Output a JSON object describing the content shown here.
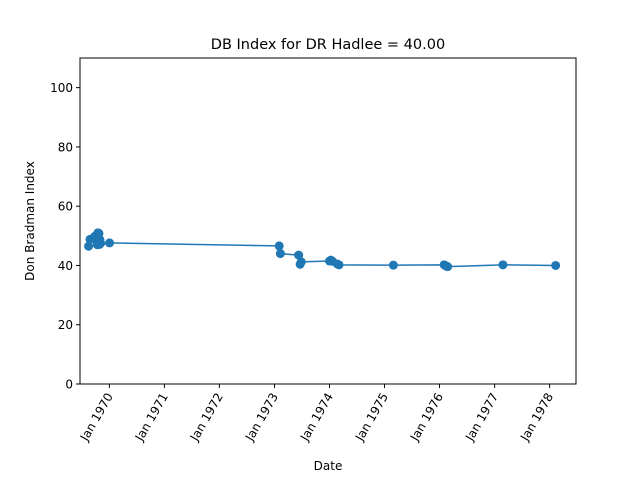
{
  "chart_data": {
    "type": "line",
    "title": "DB Index for DR Hadlee = 40.00",
    "xlabel": "Date",
    "ylabel": "Don Bradman Index",
    "x_scale": "date",
    "xlim": [
      "1969-06-20",
      "1978-06-25"
    ],
    "ylim": [
      0,
      110
    ],
    "x_ticks": [
      {
        "date": "1970-01-01",
        "label": "Jan 1970"
      },
      {
        "date": "1971-01-01",
        "label": "Jan 1971"
      },
      {
        "date": "1972-01-01",
        "label": "Jan 1972"
      },
      {
        "date": "1973-01-01",
        "label": "Jan 1973"
      },
      {
        "date": "1974-01-01",
        "label": "Jan 1974"
      },
      {
        "date": "1975-01-01",
        "label": "Jan 1975"
      },
      {
        "date": "1976-01-01",
        "label": "Jan 1976"
      },
      {
        "date": "1977-01-01",
        "label": "Jan 1977"
      },
      {
        "date": "1978-01-01",
        "label": "Jan 1978"
      }
    ],
    "y_ticks": [
      0,
      20,
      40,
      60,
      80,
      100
    ],
    "grid": false,
    "legend": "none",
    "color": "#1f77b4",
    "series": [
      {
        "x": [
          "1969-08-16",
          "1969-08-25",
          "1969-09-25",
          "1969-10-01",
          "1969-10-08",
          "1969-10-17",
          "1969-10-24",
          "1969-10-30",
          "1969-11-04",
          "1969-10-27",
          "1969-10-20",
          "1969-10-13",
          "1970-01-02",
          "1973-02-01",
          "1973-02-09",
          "1973-06-10",
          "1973-06-20",
          "1973-06-28",
          "1974-01-01",
          "1974-01-10",
          "1974-01-20",
          "1974-02-22",
          "1974-03-05",
          "1975-03-01",
          "1976-02-01",
          "1976-02-14",
          "1976-02-24",
          "1977-02-25",
          "1978-02-10"
        ],
        "y": [
          46.5,
          48.8,
          49.8,
          49.2,
          48.5,
          51.0,
          50.8,
          48.7,
          47.5,
          47.1,
          47.4,
          47.0,
          47.6,
          46.6,
          44.0,
          43.5,
          40.4,
          41.2,
          41.5,
          41.8,
          41.4,
          40.5,
          40.2,
          40.1,
          40.2,
          39.8,
          39.6,
          40.2,
          40.0
        ]
      }
    ]
  }
}
